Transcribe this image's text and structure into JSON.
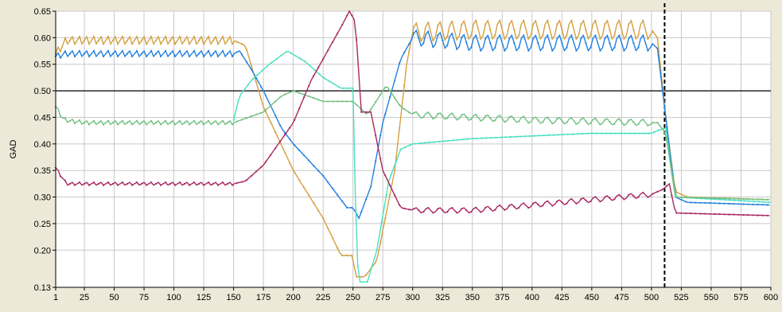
{
  "chart_data": {
    "type": "line",
    "title": "",
    "xlabel": "",
    "ylabel": "GAD",
    "xlim": [
      1,
      600
    ],
    "ylim": [
      0.13,
      0.65
    ],
    "x_ticks": [
      1,
      25,
      50,
      75,
      100,
      125,
      150,
      175,
      200,
      225,
      250,
      275,
      300,
      325,
      350,
      375,
      400,
      425,
      450,
      475,
      500,
      525,
      550,
      575,
      600
    ],
    "x_tick_labels": [
      "1",
      "25",
      "50",
      "75",
      "100",
      "125",
      "150",
      "175",
      "200",
      "225",
      "250",
      "275",
      "300",
      "325",
      "350",
      "375",
      "400",
      "425",
      "450",
      "475",
      "500",
      "525",
      "550",
      "575",
      "600"
    ],
    "y_ticks": [
      0.13,
      0.2,
      0.25,
      0.3,
      0.35,
      0.4,
      0.45,
      0.5,
      0.55,
      0.6,
      0.65
    ],
    "y_tick_labels": [
      "0.13",
      "0.20",
      "0.25",
      "0.30",
      "0.35",
      "0.40",
      "0.45",
      "0.50",
      "0.55",
      "0.60",
      "0.65"
    ],
    "grid": true,
    "reference_line_y": 0.5,
    "marker_line_x": 511,
    "colors": {
      "plot_background": "#ffffff",
      "window_background": "#ece9d8",
      "grid": "#c8c8c8",
      "reference_line": "#000000",
      "marker_line": "#000000"
    },
    "series": [
      {
        "color": "#d4a040",
        "oscillations": [
          [
            1,
            150,
            0.008,
            6
          ],
          [
            300,
            500,
            0.018,
            10
          ]
        ],
        "points": [
          [
            1,
            0.57
          ],
          [
            10,
            0.595
          ],
          [
            25,
            0.595
          ],
          [
            150,
            0.595
          ],
          [
            160,
            0.585
          ],
          [
            175,
            0.47
          ],
          [
            200,
            0.35
          ],
          [
            225,
            0.26
          ],
          [
            240,
            0.19
          ],
          [
            250,
            0.19
          ],
          [
            252,
            0.15
          ],
          [
            260,
            0.15
          ],
          [
            270,
            0.18
          ],
          [
            285,
            0.35
          ],
          [
            295,
            0.55
          ],
          [
            300,
            0.61
          ],
          [
            350,
            0.615
          ],
          [
            400,
            0.615
          ],
          [
            450,
            0.615
          ],
          [
            500,
            0.615
          ],
          [
            505,
            0.6
          ],
          [
            512,
            0.45
          ],
          [
            520,
            0.31
          ],
          [
            530,
            0.3
          ],
          [
            600,
            0.295
          ]
        ]
      },
      {
        "color": "#2080e0",
        "oscillations": [
          [
            1,
            150,
            0.006,
            6
          ],
          [
            300,
            500,
            0.015,
            10
          ]
        ],
        "points": [
          [
            1,
            0.565
          ],
          [
            10,
            0.57
          ],
          [
            150,
            0.57
          ],
          [
            155,
            0.575
          ],
          [
            165,
            0.54
          ],
          [
            175,
            0.5
          ],
          [
            190,
            0.43
          ],
          [
            200,
            0.4
          ],
          [
            225,
            0.34
          ],
          [
            245,
            0.28
          ],
          [
            250,
            0.28
          ],
          [
            255,
            0.26
          ],
          [
            265,
            0.32
          ],
          [
            275,
            0.44
          ],
          [
            290,
            0.56
          ],
          [
            300,
            0.6
          ],
          [
            350,
            0.59
          ],
          [
            400,
            0.59
          ],
          [
            450,
            0.59
          ],
          [
            500,
            0.59
          ],
          [
            505,
            0.58
          ],
          [
            512,
            0.45
          ],
          [
            520,
            0.3
          ],
          [
            530,
            0.29
          ],
          [
            600,
            0.285
          ]
        ]
      },
      {
        "color": "#48e0c0",
        "oscillations": [],
        "points": [
          [
            150,
            0.445
          ],
          [
            155,
            0.49
          ],
          [
            165,
            0.52
          ],
          [
            180,
            0.55
          ],
          [
            195,
            0.575
          ],
          [
            210,
            0.555
          ],
          [
            225,
            0.525
          ],
          [
            240,
            0.505
          ],
          [
            250,
            0.505
          ],
          [
            253,
            0.2
          ],
          [
            255,
            0.14
          ],
          [
            262,
            0.14
          ],
          [
            270,
            0.2
          ],
          [
            280,
            0.33
          ],
          [
            290,
            0.39
          ],
          [
            300,
            0.4
          ],
          [
            350,
            0.41
          ],
          [
            400,
            0.415
          ],
          [
            450,
            0.42
          ],
          [
            500,
            0.42
          ],
          [
            505,
            0.425
          ],
          [
            512,
            0.43
          ],
          [
            520,
            0.3
          ],
          [
            600,
            0.29
          ]
        ]
      },
      {
        "color": "#70c080",
        "oscillations": [
          [
            1,
            150,
            0.004,
            6
          ],
          [
            300,
            500,
            0.006,
            10
          ]
        ],
        "points": [
          [
            1,
            0.47
          ],
          [
            8,
            0.445
          ],
          [
            25,
            0.44
          ],
          [
            150,
            0.44
          ],
          [
            175,
            0.46
          ],
          [
            190,
            0.49
          ],
          [
            200,
            0.5
          ],
          [
            225,
            0.48
          ],
          [
            250,
            0.48
          ],
          [
            262,
            0.455
          ],
          [
            278,
            0.51
          ],
          [
            290,
            0.47
          ],
          [
            300,
            0.455
          ],
          [
            400,
            0.445
          ],
          [
            500,
            0.44
          ],
          [
            505,
            0.44
          ],
          [
            512,
            0.42
          ],
          [
            520,
            0.3
          ],
          [
            600,
            0.295
          ]
        ]
      },
      {
        "color": "#a82860",
        "oscillations": [
          [
            1,
            150,
            0.003,
            6
          ],
          [
            300,
            500,
            0.005,
            10
          ]
        ],
        "points": [
          [
            1,
            0.355
          ],
          [
            10,
            0.325
          ],
          [
            25,
            0.325
          ],
          [
            150,
            0.325
          ],
          [
            160,
            0.33
          ],
          [
            175,
            0.36
          ],
          [
            200,
            0.44
          ],
          [
            215,
            0.52
          ],
          [
            225,
            0.56
          ],
          [
            240,
            0.62
          ],
          [
            247,
            0.65
          ],
          [
            252,
            0.63
          ],
          [
            257,
            0.46
          ],
          [
            265,
            0.46
          ],
          [
            275,
            0.35
          ],
          [
            290,
            0.28
          ],
          [
            300,
            0.275
          ],
          [
            350,
            0.275
          ],
          [
            400,
            0.285
          ],
          [
            450,
            0.295
          ],
          [
            500,
            0.305
          ],
          [
            510,
            0.315
          ],
          [
            515,
            0.325
          ],
          [
            520,
            0.27
          ],
          [
            600,
            0.265
          ]
        ]
      }
    ]
  }
}
